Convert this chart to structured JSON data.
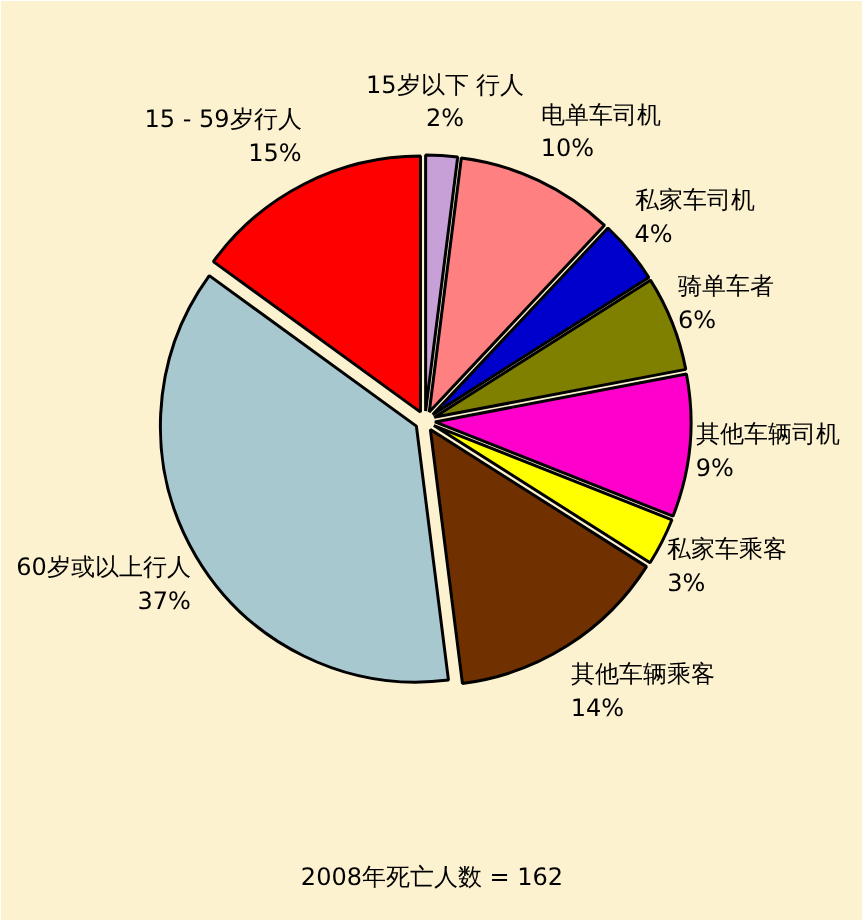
{
  "chart_data": {
    "type": "pie",
    "categories": [
      "15岁以下 行人",
      "电单车司机",
      "私家车司机",
      "骑单车者",
      "其他车辆司机",
      "私家车乘客",
      "其他车辆乘客",
      "60岁或以上行人",
      "15 - 59岁行人"
    ],
    "values": [
      2,
      10,
      4,
      6,
      9,
      3,
      14,
      37,
      15
    ],
    "colors": [
      "#c8a0d8",
      "#ff8080",
      "#0000cc",
      "#808000",
      "#ff00cc",
      "#ffff00",
      "#703000",
      "#a8c8d0",
      "#ff0000"
    ],
    "value_labels": [
      "2%",
      "10%",
      "4%",
      "6%",
      "9%",
      "3%",
      "14%",
      "37%",
      "15%"
    ],
    "annotations": [
      "2008年死亡人数 = 162"
    ]
  }
}
